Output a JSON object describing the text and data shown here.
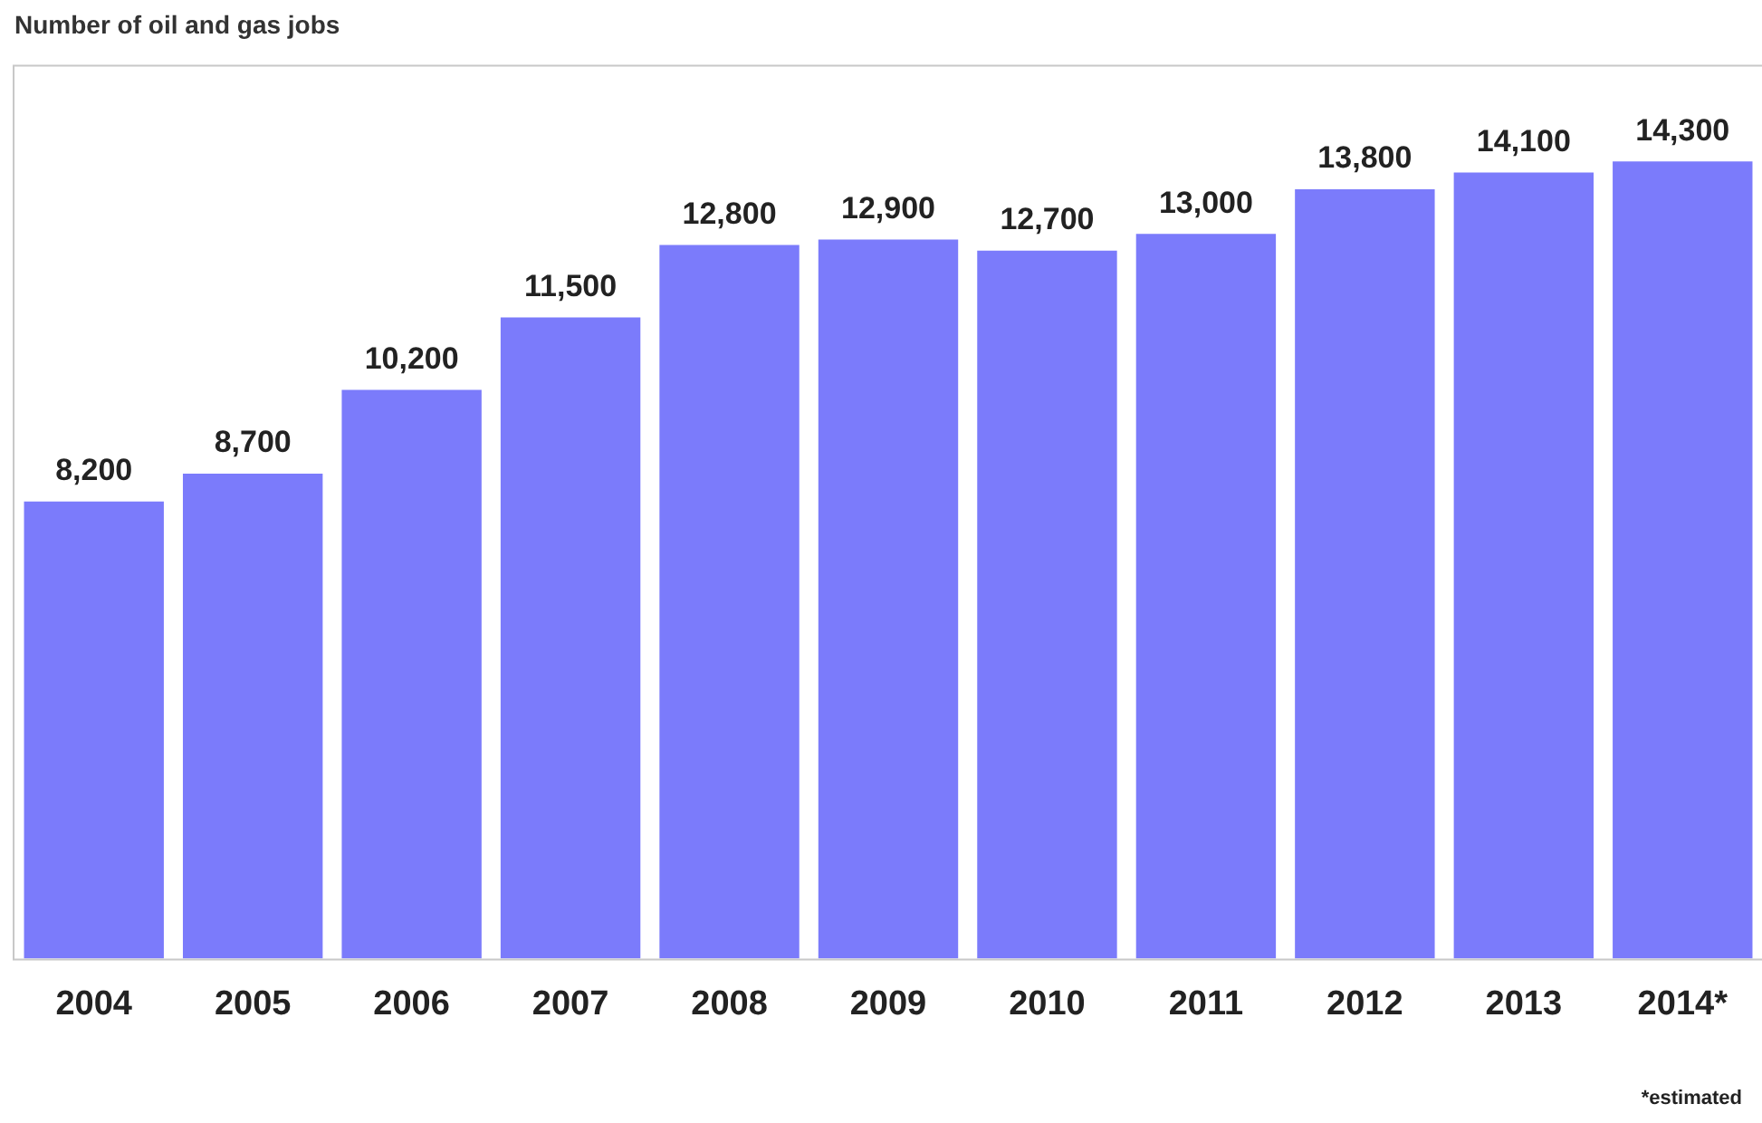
{
  "chart_data": {
    "type": "bar",
    "title": "Number of oil and gas jobs",
    "categories": [
      "2004",
      "2005",
      "2006",
      "2007",
      "2008",
      "2009",
      "2010",
      "2011",
      "2012",
      "2013",
      "2014*"
    ],
    "values": [
      8200,
      8700,
      10200,
      11500,
      12800,
      12900,
      12700,
      13000,
      13800,
      14100,
      14300
    ],
    "value_labels": [
      "8,200",
      "8,700",
      "10,200",
      "11,500",
      "12,800",
      "12,900",
      "12,700",
      "13,000",
      "13,800",
      "14,100",
      "14,300"
    ],
    "color": "#7b7bfb",
    "grid": false,
    "legend": false,
    "annotations": [
      "*estimated"
    ]
  }
}
